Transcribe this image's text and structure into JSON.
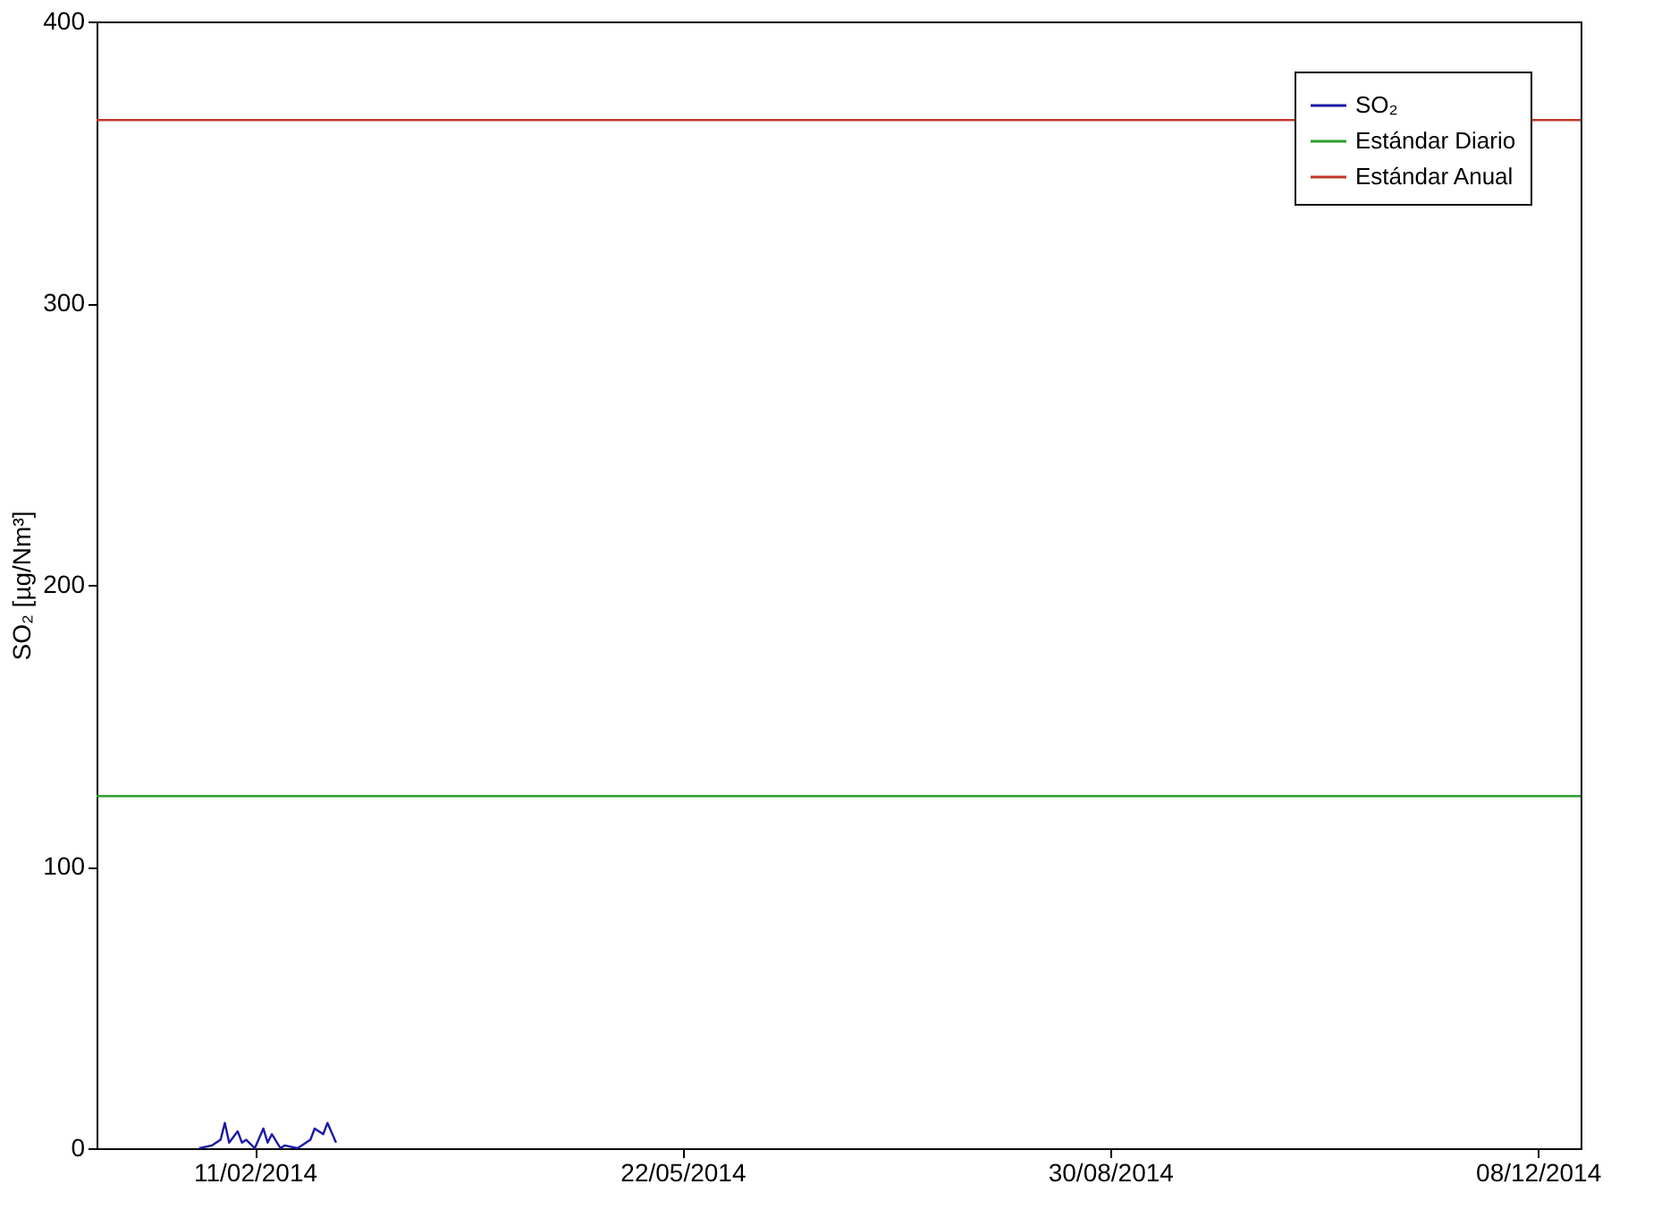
{
  "chart_data": {
    "type": "line",
    "ylabel": "SO₂ [µg/Nm³]",
    "x": [
      "2014-01-29",
      "2014-02-01",
      "2014-02-03",
      "2014-02-04",
      "2014-02-05",
      "2014-02-07",
      "2014-02-08",
      "2014-02-09",
      "2014-02-11",
      "2014-02-13",
      "2014-02-14",
      "2014-02-15",
      "2014-02-17",
      "2014-02-18",
      "2014-02-21",
      "2014-02-24",
      "2014-02-25",
      "2014-02-27",
      "2014-02-28",
      "2014-03-02"
    ],
    "series": [
      {
        "name": "SO₂",
        "color": "#1a1aa8",
        "values": [
          0,
          1,
          3,
          9,
          2,
          6,
          2,
          3,
          0,
          7,
          2,
          5,
          0,
          1,
          0,
          3,
          7,
          5,
          9,
          2
        ]
      }
    ],
    "ref_lines": [
      {
        "axis": "y",
        "value": 125,
        "label": "Estándar Diario",
        "color": "#2ca02c"
      },
      {
        "axis": "y",
        "value": 365,
        "label": "Estándar Anual",
        "color": "#c0392b"
      }
    ],
    "xlim": [
      "2014-01-05",
      "2014-12-18"
    ],
    "xticks": [
      {
        "value": "2014-02-11",
        "label": "11/02/2014"
      },
      {
        "value": "2014-05-22",
        "label": "22/05/2014"
      },
      {
        "value": "2014-08-30",
        "label": "30/08/2014"
      },
      {
        "value": "2014-12-08",
        "label": "08/12/2014"
      }
    ],
    "ylim": [
      0,
      400
    ],
    "yticks": [
      0,
      100,
      200,
      300,
      400
    ],
    "grid": false,
    "legend": "top right",
    "marker": "none",
    "line_style": "solid"
  }
}
